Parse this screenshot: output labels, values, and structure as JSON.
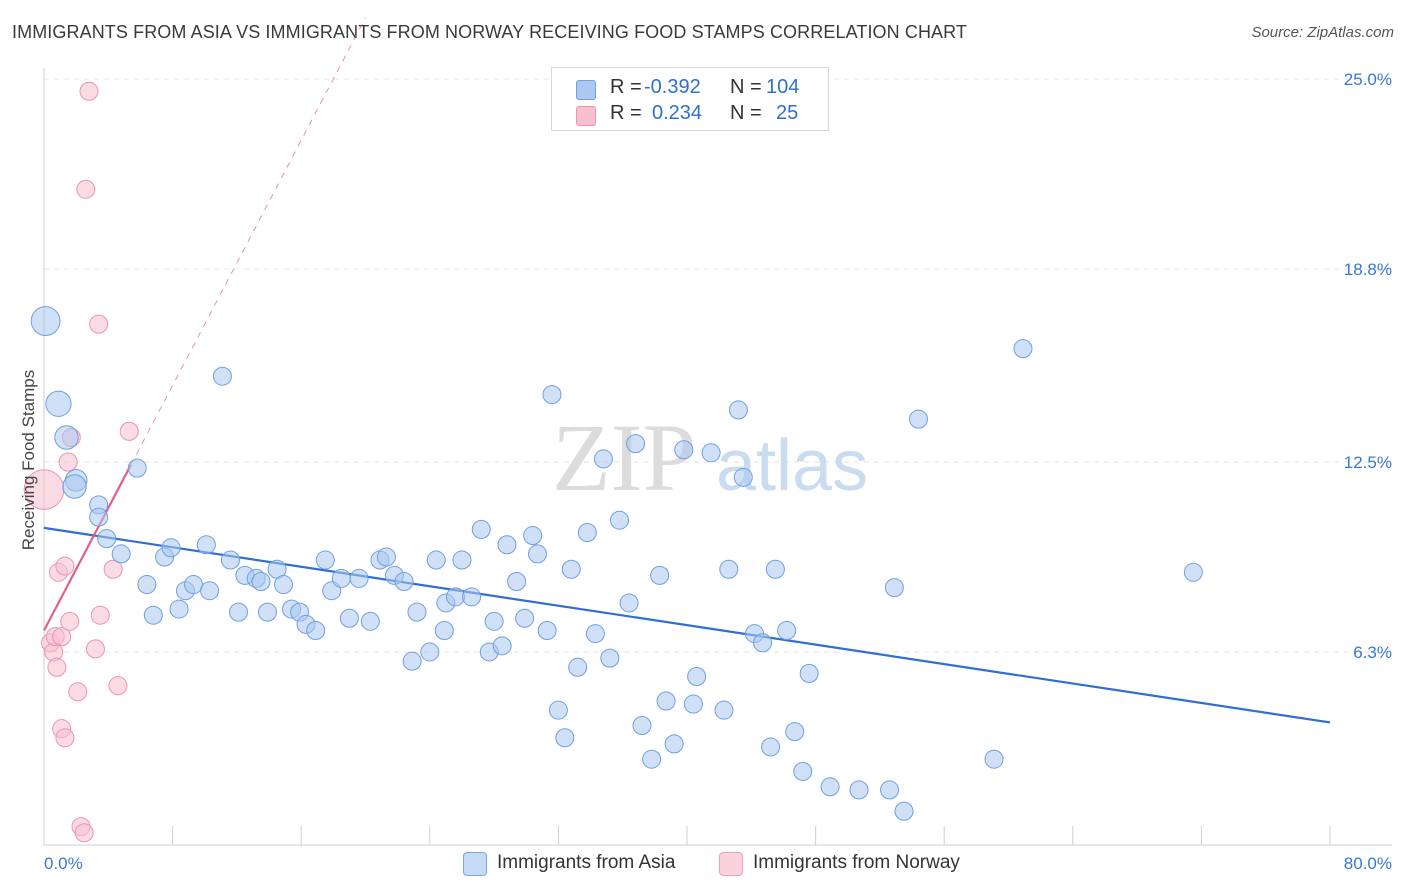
{
  "title": "IMMIGRANTS FROM ASIA VS IMMIGRANTS FROM NORWAY RECEIVING FOOD STAMPS CORRELATION CHART",
  "source": "Source: ZipAtlas.com",
  "watermark": {
    "zip": "ZIP",
    "atlas": "atlas"
  },
  "legend_top": {
    "asia": {
      "r_label": "R =",
      "r_value": "-0.392",
      "n_label": "N =",
      "n_value": "104"
    },
    "norway": {
      "r_label": "R =",
      "r_value": "0.234",
      "n_label": "N =",
      "n_value": "25"
    }
  },
  "bottom_legend": {
    "asia": "Immigrants from Asia",
    "norway": "Immigrants from Norway"
  },
  "colors": {
    "asia_fill": "#aac8f0",
    "asia_stroke": "#6f9fe0",
    "asia_line": "#2f6fd0",
    "norway_fill": "#f7bfcf",
    "norway_stroke": "#ee93ad",
    "norway_line": "#e0608a",
    "tick_label": "#3a78d0",
    "grid": "#e3e3e3"
  },
  "chart_data": {
    "type": "scatter",
    "title": "IMMIGRANTS FROM ASIA VS IMMIGRANTS FROM NORWAY RECEIVING FOOD STAMPS CORRELATION CHART",
    "xlabel": "",
    "ylabel": "Receiving Food Stamps",
    "xlim": [
      0,
      80
    ],
    "ylim": [
      0,
      25
    ],
    "x_tick_labels": [
      "0.0%",
      "80.0%"
    ],
    "y_ticks": [
      6.3,
      12.5,
      18.8,
      25.0
    ],
    "y_tick_labels": [
      "6.3%",
      "12.5%",
      "18.8%",
      "25.0%"
    ],
    "grid": "horizontal dashed",
    "legend_position": "top-center",
    "series": [
      {
        "name": "Immigrants from Asia",
        "r": -0.392,
        "n": 104,
        "trend": {
          "x": [
            0,
            80
          ],
          "y": [
            10.35,
            4.0
          ]
        },
        "points": [
          [
            0.1,
            17.1,
            1.6
          ],
          [
            0.9,
            14.4,
            1.4
          ],
          [
            1.4,
            13.3,
            1.3
          ],
          [
            2.0,
            11.9,
            1.2
          ],
          [
            1.9,
            11.7,
            1.3
          ],
          [
            3.4,
            11.1,
            1.0
          ],
          [
            3.4,
            10.7,
            1.0
          ],
          [
            3.9,
            10.0,
            1.0
          ],
          [
            4.8,
            9.5,
            1.0
          ],
          [
            5.8,
            12.3,
            1.0
          ],
          [
            6.4,
            8.5,
            1.0
          ],
          [
            6.8,
            7.5,
            1.0
          ],
          [
            7.5,
            9.4,
            1.0
          ],
          [
            7.9,
            9.7,
            1.0
          ],
          [
            8.4,
            7.7,
            1.0
          ],
          [
            8.8,
            8.3,
            1.0
          ],
          [
            9.3,
            8.5,
            1.0
          ],
          [
            10.3,
            8.3,
            1.0
          ],
          [
            10.1,
            9.8,
            1.0
          ],
          [
            11.1,
            15.3,
            1.0
          ],
          [
            11.6,
            9.3,
            1.0
          ],
          [
            12.1,
            7.6,
            1.0
          ],
          [
            12.5,
            8.8,
            1.0
          ],
          [
            13.2,
            8.7,
            1.0
          ],
          [
            13.5,
            8.6,
            1.0
          ],
          [
            13.9,
            7.6,
            1.0
          ],
          [
            14.5,
            9.0,
            1.0
          ],
          [
            14.9,
            8.5,
            1.0
          ],
          [
            15.4,
            7.7,
            1.0
          ],
          [
            15.9,
            7.6,
            1.0
          ],
          [
            16.3,
            7.2,
            1.0
          ],
          [
            16.9,
            7.0,
            1.0
          ],
          [
            17.5,
            9.3,
            1.0
          ],
          [
            17.9,
            8.3,
            1.0
          ],
          [
            18.5,
            8.7,
            1.0
          ],
          [
            19.0,
            7.4,
            1.0
          ],
          [
            19.6,
            8.7,
            1.0
          ],
          [
            20.3,
            7.3,
            1.0
          ],
          [
            20.9,
            9.3,
            1.0
          ],
          [
            21.3,
            9.4,
            1.0
          ],
          [
            21.8,
            8.8,
            1.0
          ],
          [
            22.4,
            8.6,
            1.0
          ],
          [
            22.9,
            6.0,
            1.0
          ],
          [
            23.2,
            7.6,
            1.0
          ],
          [
            24.0,
            6.3,
            1.0
          ],
          [
            24.4,
            9.3,
            1.0
          ],
          [
            24.9,
            7.0,
            1.0
          ],
          [
            25.0,
            7.9,
            1.0
          ],
          [
            25.6,
            8.1,
            1.0
          ],
          [
            26.0,
            9.3,
            1.0
          ],
          [
            26.6,
            8.1,
            1.0
          ],
          [
            27.2,
            10.3,
            1.0
          ],
          [
            27.7,
            6.3,
            1.0
          ],
          [
            28.0,
            7.3,
            1.0
          ],
          [
            28.5,
            6.5,
            1.0
          ],
          [
            28.8,
            9.8,
            1.0
          ],
          [
            29.4,
            8.6,
            1.0
          ],
          [
            29.9,
            7.4,
            1.0
          ],
          [
            30.4,
            10.1,
            1.0
          ],
          [
            30.7,
            9.5,
            1.0
          ],
          [
            31.3,
            7.0,
            1.0
          ],
          [
            31.6,
            14.7,
            1.0
          ],
          [
            32.0,
            4.4,
            1.0
          ],
          [
            32.4,
            3.5,
            1.0
          ],
          [
            32.8,
            9.0,
            1.0
          ],
          [
            33.2,
            5.8,
            1.0
          ],
          [
            33.8,
            10.2,
            1.0
          ],
          [
            34.3,
            6.9,
            1.0
          ],
          [
            34.8,
            12.6,
            1.0
          ],
          [
            35.2,
            6.1,
            1.0
          ],
          [
            35.8,
            10.6,
            1.0
          ],
          [
            36.4,
            7.9,
            1.0
          ],
          [
            36.8,
            13.1,
            1.0
          ],
          [
            37.2,
            3.9,
            1.0
          ],
          [
            37.8,
            2.8,
            1.0
          ],
          [
            38.3,
            8.8,
            1.0
          ],
          [
            38.7,
            4.7,
            1.0
          ],
          [
            39.2,
            3.3,
            1.0
          ],
          [
            39.8,
            12.9,
            1.0
          ],
          [
            40.4,
            4.6,
            1.0
          ],
          [
            40.6,
            5.5,
            1.0
          ],
          [
            41.5,
            12.8,
            1.0
          ],
          [
            42.3,
            4.4,
            1.0
          ],
          [
            42.6,
            9.0,
            1.0
          ],
          [
            43.2,
            14.2,
            1.0
          ],
          [
            43.5,
            12.0,
            1.0
          ],
          [
            44.2,
            6.9,
            1.0
          ],
          [
            44.7,
            6.6,
            1.0
          ],
          [
            45.2,
            3.2,
            1.0
          ],
          [
            45.5,
            9.0,
            1.0
          ],
          [
            46.2,
            7.0,
            1.0
          ],
          [
            46.7,
            3.7,
            1.0
          ],
          [
            47.2,
            2.4,
            1.0
          ],
          [
            47.6,
            5.6,
            1.0
          ],
          [
            48.9,
            1.9,
            1.0
          ],
          [
            50.7,
            1.8,
            1.0
          ],
          [
            52.6,
            1.8,
            1.0
          ],
          [
            52.9,
            8.4,
            1.0
          ],
          [
            53.5,
            1.1,
            1.0
          ],
          [
            54.4,
            13.9,
            1.0
          ],
          [
            59.1,
            2.8,
            1.0
          ],
          [
            60.9,
            16.2,
            1.0
          ],
          [
            71.5,
            8.9,
            1.0
          ]
        ]
      },
      {
        "name": "Immigrants from Norway",
        "r": 0.234,
        "n": 25,
        "trend_solid": {
          "x": [
            0,
            5.4
          ],
          "y": [
            7.0,
            12.4
          ]
        },
        "trend_dashed": {
          "x": [
            5.4,
            20.0
          ],
          "y": [
            12.4,
            27.0
          ]
        },
        "points": [
          [
            0.0,
            11.6,
            2.2
          ],
          [
            0.4,
            6.6,
            1.0
          ],
          [
            0.6,
            6.3,
            1.0
          ],
          [
            0.7,
            6.8,
            1.0
          ],
          [
            0.8,
            5.8,
            1.0
          ],
          [
            0.9,
            8.9,
            1.0
          ],
          [
            1.1,
            3.8,
            1.0
          ],
          [
            1.1,
            6.8,
            1.0
          ],
          [
            1.3,
            9.1,
            1.0
          ],
          [
            1.3,
            3.5,
            1.0
          ],
          [
            1.5,
            12.5,
            1.0
          ],
          [
            1.6,
            7.3,
            1.0
          ],
          [
            1.7,
            13.3,
            1.0
          ],
          [
            2.1,
            5.0,
            1.0
          ],
          [
            2.3,
            0.6,
            1.0
          ],
          [
            2.5,
            0.4,
            1.0
          ],
          [
            2.6,
            21.4,
            1.0
          ],
          [
            2.8,
            24.6,
            1.0
          ],
          [
            3.2,
            6.4,
            1.0
          ],
          [
            3.4,
            17.0,
            1.0
          ],
          [
            3.5,
            7.5,
            1.0
          ],
          [
            4.3,
            9.0,
            1.0
          ],
          [
            4.6,
            5.2,
            1.0
          ],
          [
            5.3,
            13.5,
            1.0
          ]
        ]
      }
    ]
  }
}
